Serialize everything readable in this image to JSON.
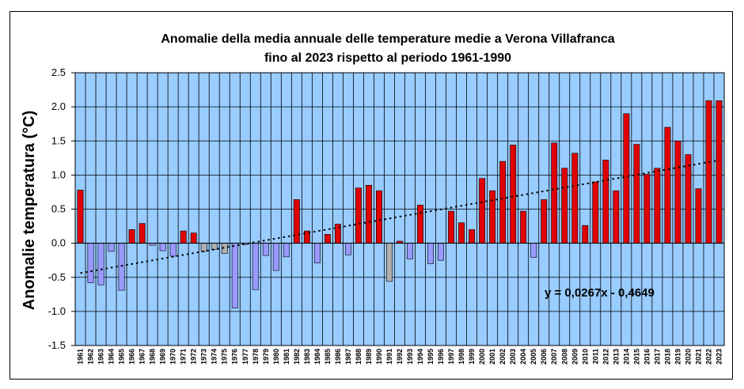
{
  "chart_data": {
    "type": "bar",
    "title_line1": "Anomalie della media annuale delle temperature medie a  Verona Villafranca",
    "title_line2": "fino al 2023 rispetto al periodo 1961-1990",
    "ylabel": "Anomalie temperatura (°C)",
    "xlabel": "",
    "ylim": [
      -1.5,
      2.5
    ],
    "yticks": [
      "2.5",
      "2.0",
      "1.5",
      "1.0",
      "0.5",
      "0.0",
      "-0.5",
      "-1.0",
      "-1.5"
    ],
    "ytick_values": [
      2.5,
      2.0,
      1.5,
      1.0,
      0.5,
      0.0,
      -0.5,
      -1.0,
      -1.5
    ],
    "grid": true,
    "plot_background": "#99ccff",
    "positive_color": "#e00000",
    "negative_color": "#9999ff",
    "neutral_color": "#b0b0b0",
    "categories": [
      "1961",
      "1962",
      "1963",
      "1964",
      "1965",
      "1966",
      "1967",
      "1968",
      "1969",
      "1970",
      "1971",
      "1972",
      "1973",
      "1974",
      "1975",
      "1976",
      "1977",
      "1978",
      "1979",
      "1980",
      "1981",
      "1982",
      "1983",
      "1984",
      "1985",
      "1986",
      "1987",
      "1988",
      "1989",
      "1990",
      "1991",
      "1992",
      "1993",
      "1994",
      "1995",
      "1996",
      "1997",
      "1998",
      "1999",
      "2000",
      "2001",
      "2002",
      "2003",
      "2004",
      "2005",
      "2006",
      "2007",
      "2008",
      "2009",
      "2010",
      "2011",
      "2012",
      "2013",
      "2014",
      "2015",
      "2016",
      "2017",
      "2018",
      "2019",
      "2020",
      "2021",
      "2022",
      "2023"
    ],
    "values": [
      0.78,
      -0.58,
      -0.61,
      -0.12,
      -0.69,
      0.2,
      0.29,
      -0.03,
      -0.11,
      -0.19,
      0.18,
      0.15,
      -0.12,
      -0.09,
      -0.15,
      -0.95,
      -0.02,
      -0.68,
      -0.18,
      -0.4,
      -0.2,
      0.64,
      0.18,
      -0.29,
      0.13,
      0.28,
      -0.17,
      0.81,
      0.85,
      0.77,
      -0.56,
      0.03,
      -0.23,
      0.56,
      -0.3,
      -0.25,
      0.47,
      0.3,
      0.2,
      0.95,
      0.77,
      1.2,
      1.44,
      0.47,
      -0.21,
      0.64,
      1.47,
      1.1,
      1.32,
      0.26,
      0.9,
      1.22,
      0.77,
      1.9,
      1.45,
      1.01,
      1.1,
      1.7,
      1.5,
      1.3,
      0.8,
      2.09,
      2.09
    ],
    "neutral_years": [
      "1973",
      "1974",
      "1975",
      "1991"
    ],
    "trendline": {
      "slope": 0.0267,
      "intercept": -0.4649,
      "style": "dotted",
      "label": "y = 0,0267x - 0,4649"
    }
  }
}
